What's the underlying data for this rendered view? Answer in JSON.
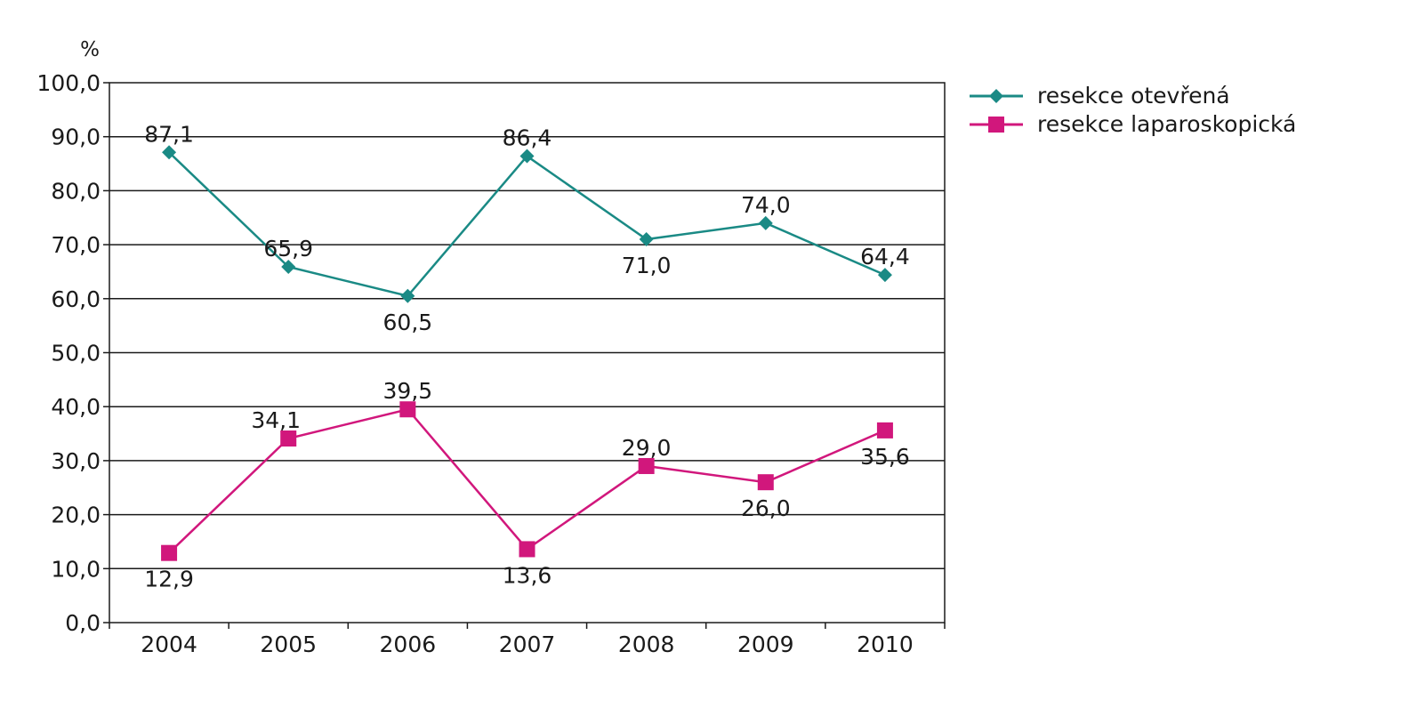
{
  "chart_data": {
    "type": "line",
    "title": "",
    "xlabel": "",
    "ylabel": "%",
    "categories": [
      "2004",
      "2005",
      "2006",
      "2007",
      "2008",
      "2009",
      "2010"
    ],
    "ylim": [
      0,
      100
    ],
    "y_ticks": [
      "0,0",
      "10,0",
      "20,0",
      "30,0",
      "40,0",
      "50,0",
      "60,0",
      "70,0",
      "80,0",
      "90,0",
      "100,0"
    ],
    "grid": true,
    "legend_position": "top-right",
    "series": [
      {
        "name": "resekce otevřená",
        "color": "#1a8a85",
        "marker": "diamond",
        "values": [
          87.1,
          65.9,
          60.5,
          86.4,
          71.0,
          74.0,
          64.4
        ],
        "labels": [
          "87,1",
          "65,9",
          "60,5",
          "86,4",
          "71,0",
          "74,0",
          "64,4"
        ],
        "label_positions": [
          "above",
          "above",
          "below",
          "above",
          "below",
          "above",
          "above"
        ]
      },
      {
        "name": "resekce laparoskopická",
        "color": "#d1177c",
        "marker": "square",
        "values": [
          12.9,
          34.1,
          39.5,
          13.6,
          29.0,
          26.0,
          35.6
        ],
        "labels": [
          "12,9",
          "34,1",
          "39,5",
          "13,6",
          "29,0",
          "26,0",
          "35,6"
        ],
        "label_positions": [
          "below",
          "above-left",
          "above",
          "below",
          "above",
          "below",
          "below"
        ]
      }
    ]
  }
}
